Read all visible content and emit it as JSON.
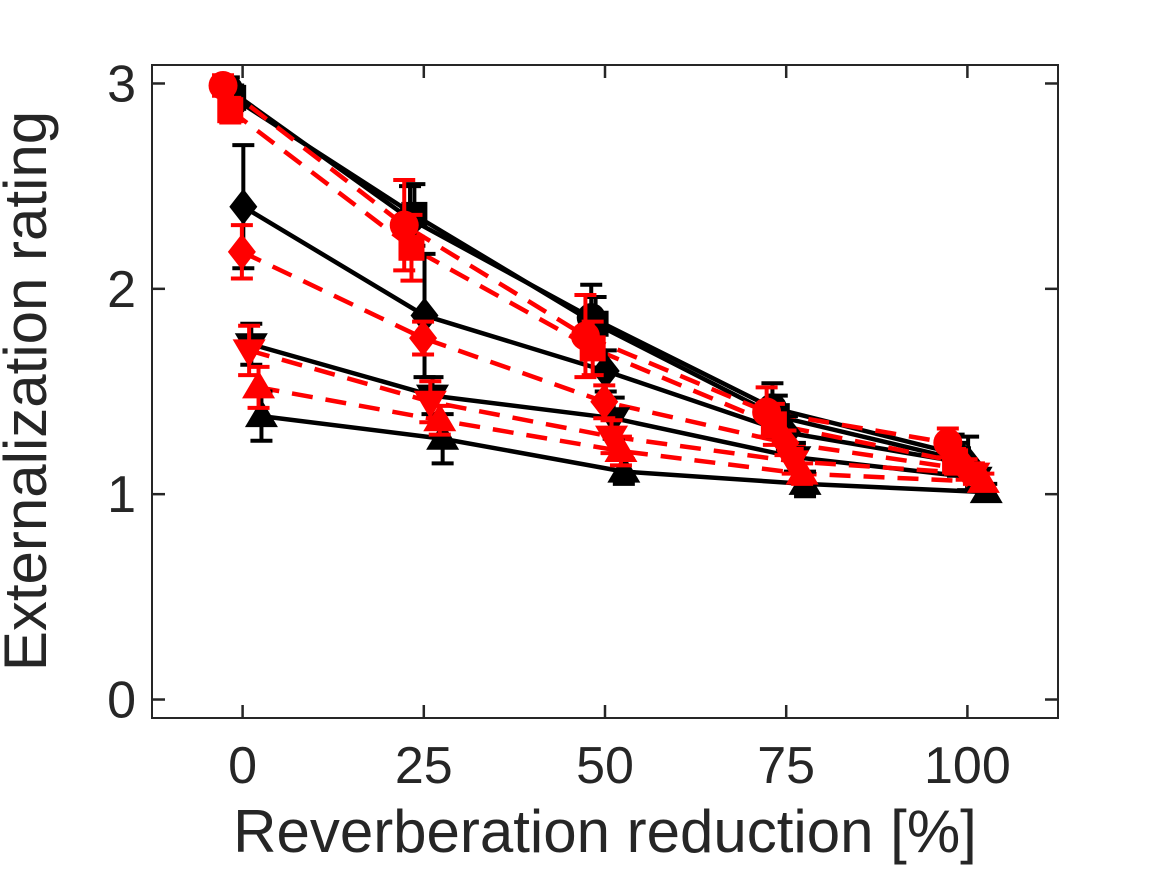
{
  "figure": {
    "background_color": "#ffffff",
    "axis_color": "#262626",
    "text_color": "#262626",
    "black_series_color": "#000000",
    "red_series_color": "#ff0000"
  },
  "chart_data": {
    "type": "line",
    "title": "",
    "xlabel": "Reverberation reduction [%]",
    "ylabel": "Externalization rating",
    "xlim": [
      -12.5,
      112.5
    ],
    "ylim": [
      -0.09,
      3.09
    ],
    "x_ticks": [
      0,
      25,
      50,
      75,
      100
    ],
    "y_ticks": [
      0,
      1,
      2,
      3
    ],
    "grid": false,
    "legend": "none",
    "error_bars": true,
    "categories": [
      0,
      25,
      50,
      75,
      100
    ],
    "series": [
      {
        "name": "black-circle",
        "color": "#000000",
        "line_style": "solid",
        "marker": "circle",
        "x_offset": -1.9,
        "values": [
          2.97,
          2.34,
          1.86,
          1.42,
          1.2
        ],
        "errors": [
          0.06,
          0.16,
          0.16,
          0.12,
          0.09
        ]
      },
      {
        "name": "black-square",
        "color": "#000000",
        "line_style": "solid",
        "marker": "square",
        "x_offset": -1.3,
        "values": [
          2.93,
          2.36,
          1.83,
          1.38,
          1.17
        ],
        "errors": [
          0.06,
          0.15,
          0.13,
          0.1,
          0.08
        ]
      },
      {
        "name": "black-diamond",
        "color": "#000000",
        "line_style": "solid",
        "marker": "diamond",
        "x_offset": 0.1,
        "values": [
          2.4,
          1.87,
          1.6,
          1.3,
          1.15
        ],
        "errors": [
          0.3,
          0.3,
          0.1,
          0.08,
          0.13
        ]
      },
      {
        "name": "black-triangle-down",
        "color": "#000000",
        "line_style": "solid",
        "marker": "triangle-down",
        "x_offset": 1.2,
        "values": [
          1.73,
          1.48,
          1.37,
          1.18,
          1.08
        ],
        "errors": [
          0.1,
          0.09,
          0.1,
          0.07,
          0.05
        ]
      },
      {
        "name": "black-triangle-up",
        "color": "#000000",
        "line_style": "solid",
        "marker": "triangle-up",
        "x_offset": 2.6,
        "values": [
          1.38,
          1.27,
          1.11,
          1.05,
          1.01
        ],
        "errors": [
          0.12,
          0.12,
          0.06,
          0.06,
          0.04
        ]
      },
      {
        "name": "red-circle",
        "color": "#ff0000",
        "line_style": "dashed",
        "marker": "circle",
        "x_offset": -2.7,
        "values": [
          2.99,
          2.31,
          1.77,
          1.4,
          1.25
        ],
        "errors": [
          0.05,
          0.22,
          0.2,
          0.12,
          0.07
        ]
      },
      {
        "name": "red-square",
        "color": "#ff0000",
        "line_style": "dashed",
        "marker": "square",
        "x_offset": -1.7,
        "values": [
          2.87,
          2.2,
          1.71,
          1.34,
          1.16
        ],
        "errors": [
          0.06,
          0.16,
          0.13,
          0.1,
          0.06
        ]
      },
      {
        "name": "red-diamond",
        "color": "#ff0000",
        "line_style": "dashed",
        "marker": "diamond",
        "x_offset": -0.1,
        "values": [
          2.18,
          1.76,
          1.45,
          1.25,
          1.12
        ],
        "errors": [
          0.13,
          0.08,
          0.08,
          0.06,
          0.05
        ]
      },
      {
        "name": "red-triangle-down",
        "color": "#ff0000",
        "line_style": "dashed",
        "marker": "triangle-down",
        "x_offset": 0.9,
        "values": [
          1.7,
          1.45,
          1.28,
          1.16,
          1.1
        ],
        "errors": [
          0.12,
          0.1,
          0.08,
          0.06,
          0.05
        ]
      },
      {
        "name": "red-triangle-up",
        "color": "#ff0000",
        "line_style": "dashed",
        "marker": "triangle-up",
        "x_offset": 2.2,
        "values": [
          1.52,
          1.36,
          1.21,
          1.1,
          1.06
        ],
        "errors": [
          0.1,
          0.07,
          0.07,
          0.05,
          0.04
        ]
      }
    ]
  }
}
